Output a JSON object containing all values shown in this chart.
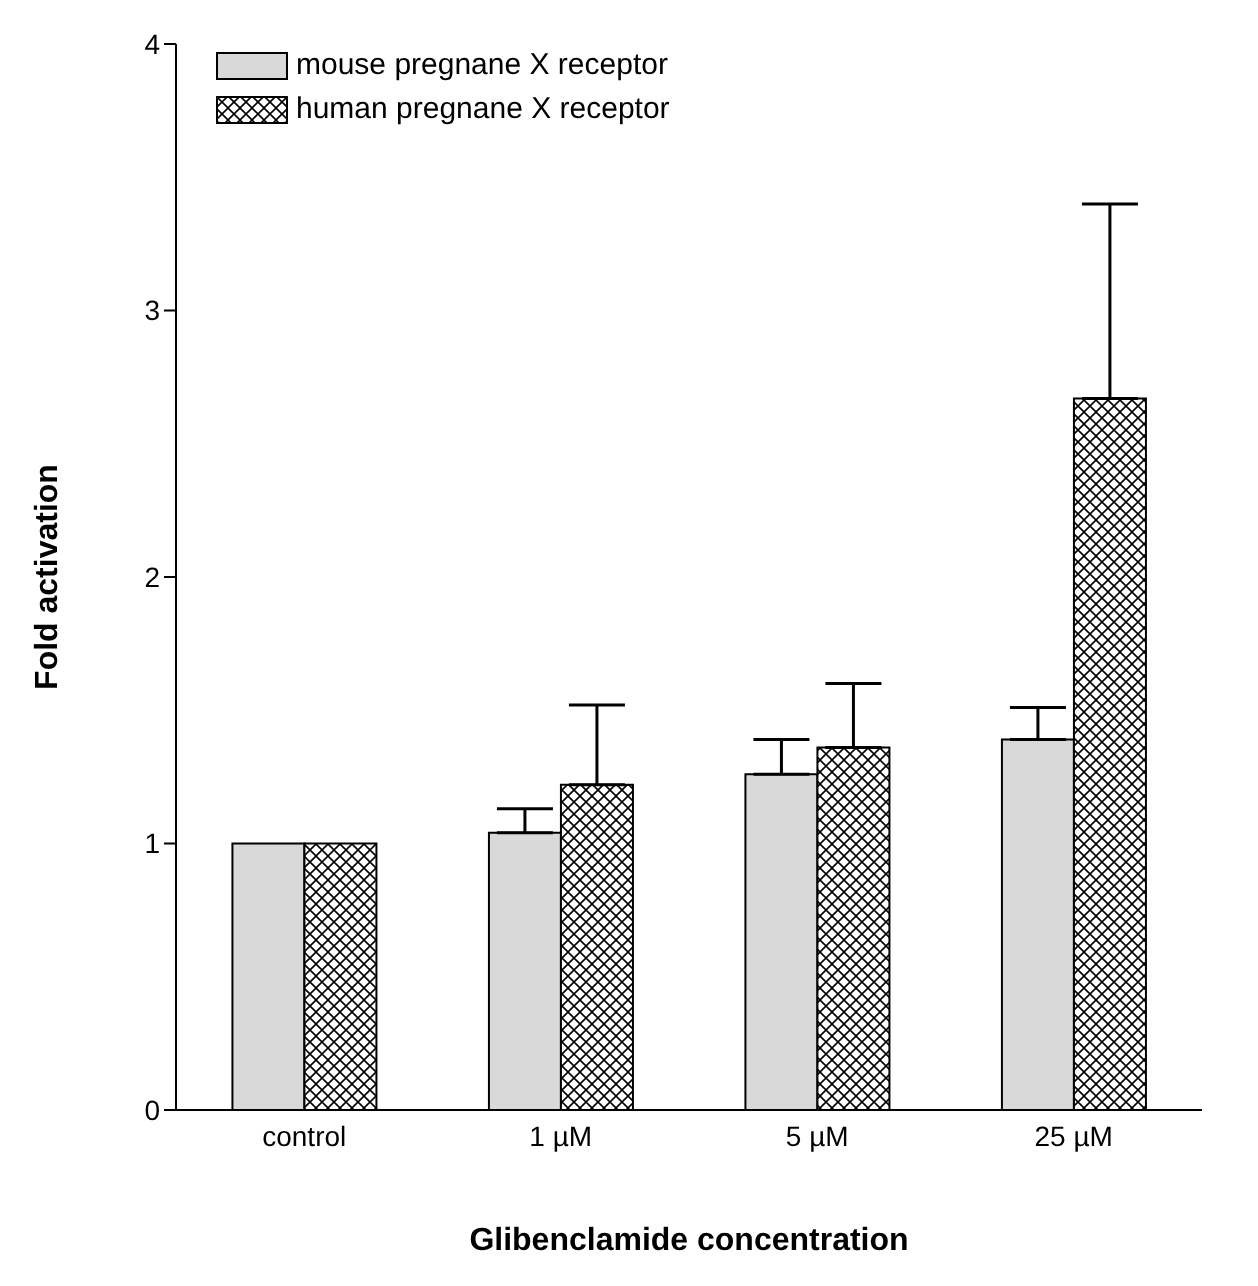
{
  "chart_data": {
    "type": "bar",
    "xlabel": "Glibenclamide concentration",
    "ylabel": "Fold activation",
    "categories": [
      "control",
      "1 µM",
      "5 µM",
      "25 µM"
    ],
    "series": [
      {
        "name": "mouse pregnane X receptor",
        "color": "#d9d9d9",
        "values": [
          1.0,
          1.04,
          1.26,
          1.39
        ],
        "errors": [
          null,
          [
            1.04,
            1.13
          ],
          [
            1.26,
            1.39
          ],
          [
            1.39,
            1.51
          ]
        ]
      },
      {
        "name": "human pregnane X receptor",
        "color": "#000000",
        "values": [
          1.0,
          1.22,
          1.36,
          2.67
        ],
        "errors": [
          null,
          [
            1.22,
            1.52
          ],
          [
            1.36,
            1.6
          ],
          [
            2.67,
            3.4
          ]
        ]
      }
    ],
    "ylim": [
      0,
      4
    ],
    "yticks": [
      0,
      1,
      2,
      3,
      4
    ],
    "grid": false,
    "legend": "top left"
  }
}
